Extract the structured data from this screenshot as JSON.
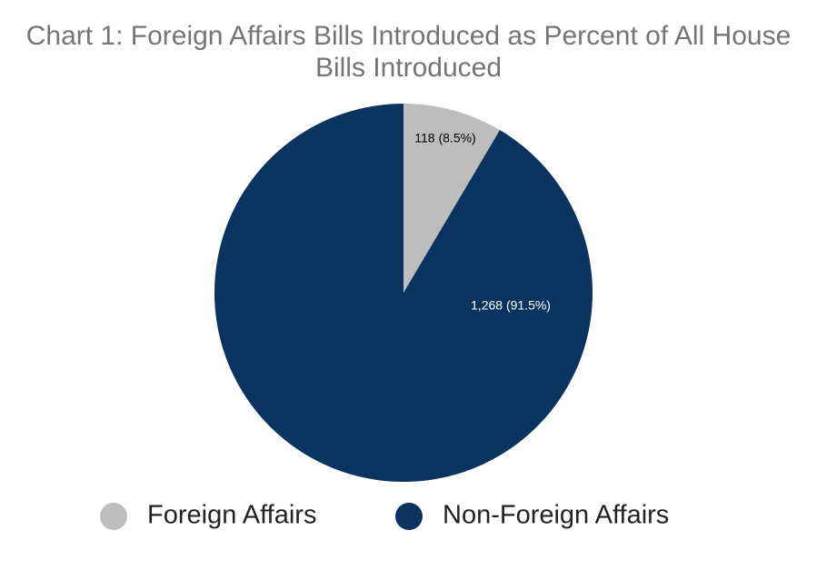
{
  "chart_data": {
    "type": "pie",
    "title": "Chart 1: Foreign Affairs Bills Introduced as Percent of All House Bills Introduced",
    "categories": [
      "Foreign Affairs",
      "Non-Foreign Affairs"
    ],
    "values": [
      118,
      1268
    ],
    "value_labels": [
      "118 (8.5%)",
      "1,268 (91.5%)"
    ],
    "colors": [
      "#bdbdbd",
      "#0b335f"
    ],
    "label_colors": [
      "#000000",
      "#ffffff"
    ],
    "legend": "bottom"
  }
}
